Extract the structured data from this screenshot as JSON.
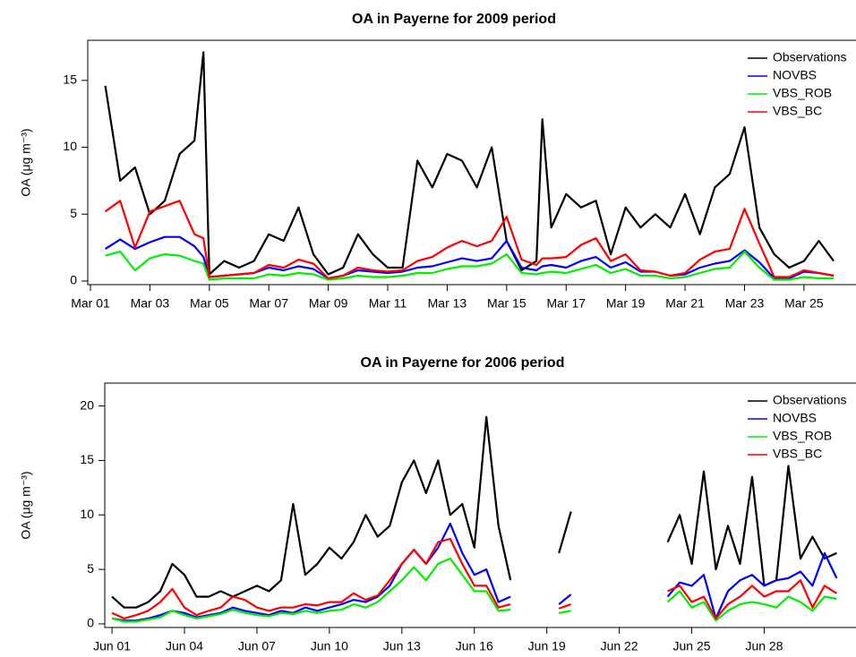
{
  "chart_data": [
    {
      "type": "line",
      "title": "OA in Payerne for 2009 period",
      "ylabel": "OA (μg m⁻³)",
      "xlim": [
        0.91,
        26.75
      ],
      "ylim": [
        -0.27,
        18.0
      ],
      "xticks": [
        {
          "value": 1,
          "label": "Mar 01"
        },
        {
          "value": 3,
          "label": "Mar 03"
        },
        {
          "value": 5,
          "label": "Mar 05"
        },
        {
          "value": 7,
          "label": "Mar 07"
        },
        {
          "value": 9,
          "label": "Mar 09"
        },
        {
          "value": 11,
          "label": "Mar 11"
        },
        {
          "value": 13,
          "label": "Mar 13"
        },
        {
          "value": 15,
          "label": "Mar 15"
        },
        {
          "value": 17,
          "label": "Mar 17"
        },
        {
          "value": 19,
          "label": "Mar 19"
        },
        {
          "value": 21,
          "label": "Mar 21"
        },
        {
          "value": 23,
          "label": "Mar 23"
        },
        {
          "value": 25,
          "label": "Mar 25"
        }
      ],
      "yticks": [
        0,
        5,
        10,
        15
      ],
      "legend": "top-right",
      "x": [
        1.5,
        2,
        2.5,
        3,
        3.5,
        4,
        4.5,
        4.8,
        5,
        5.5,
        6,
        6.5,
        7,
        7.5,
        8,
        8.5,
        9,
        9.5,
        10,
        10.5,
        11,
        11.5,
        12,
        12.5,
        13,
        13.5,
        14,
        14.5,
        15,
        15.5,
        16,
        16.2,
        16.5,
        17,
        17.5,
        18,
        18.5,
        19,
        19.5,
        20,
        20.5,
        21,
        21.5,
        22,
        22.5,
        23,
        23.5,
        24,
        24.5,
        25,
        25.5,
        26
      ],
      "series": [
        {
          "name": "Observations",
          "color": "#000000",
          "values": [
            14.6,
            7.5,
            8.5,
            5,
            6,
            9.5,
            10.5,
            17.1,
            0.5,
            1.5,
            1,
            1.5,
            3.5,
            3,
            5.5,
            2,
            0.5,
            1,
            3.5,
            2,
            1,
            1,
            9,
            7,
            9.5,
            9,
            7,
            10,
            3,
            0.8,
            1.5,
            12.1,
            4,
            6.5,
            5.5,
            6,
            2,
            5.5,
            4,
            5,
            4,
            6.5,
            3.5,
            7,
            8,
            11.5,
            4,
            2,
            1,
            1.5,
            3,
            1.5
          ]
        },
        {
          "name": "NOVBS",
          "color": "#0000ff",
          "values": [
            2.4,
            3.1,
            2.4,
            2.9,
            3.3,
            3.3,
            2.6,
            1.8,
            0.3,
            0.4,
            0.5,
            0.6,
            1.0,
            0.8,
            1.1,
            0.9,
            0.2,
            0.4,
            0.8,
            0.7,
            0.6,
            0.7,
            1.0,
            1.1,
            1.4,
            1.7,
            1.5,
            1.7,
            3.0,
            1.0,
            0.8,
            1.1,
            1.2,
            1.0,
            1.5,
            1.8,
            1.0,
            1.4,
            0.7,
            0.7,
            0.4,
            0.5,
            1.0,
            1.3,
            1.5,
            2.3,
            1.4,
            0.2,
            0.2,
            0.7,
            0.6,
            0.4
          ]
        },
        {
          "name": "VBS_ROB",
          "color": "#00ee00",
          "values": [
            1.9,
            2.2,
            0.8,
            1.7,
            2.0,
            1.9,
            1.5,
            1.3,
            0.1,
            0.2,
            0.2,
            0.2,
            0.5,
            0.4,
            0.6,
            0.5,
            0.1,
            0.2,
            0.4,
            0.3,
            0.3,
            0.4,
            0.6,
            0.6,
            0.9,
            1.1,
            1.1,
            1.3,
            2.0,
            0.6,
            0.5,
            0.6,
            0.7,
            0.6,
            0.9,
            1.2,
            0.6,
            0.9,
            0.4,
            0.4,
            0.2,
            0.3,
            0.6,
            0.9,
            1.0,
            2.2,
            1.0,
            0.1,
            0.1,
            0.3,
            0.2,
            0.2
          ]
        },
        {
          "name": "VBS_BC",
          "color": "#ff0000",
          "values": [
            5.2,
            6.0,
            2.5,
            5.2,
            5.6,
            6.0,
            3.5,
            3.2,
            0.3,
            0.4,
            0.5,
            0.6,
            1.2,
            1.0,
            1.6,
            1.3,
            0.2,
            0.4,
            1.0,
            0.8,
            0.7,
            0.8,
            1.5,
            1.8,
            2.5,
            3.0,
            2.6,
            3.0,
            4.8,
            1.6,
            1.2,
            1.7,
            1.7,
            1.8,
            2.7,
            3.2,
            1.5,
            2.0,
            0.8,
            0.7,
            0.4,
            0.6,
            1.6,
            2.2,
            2.4,
            5.4,
            2.8,
            0.3,
            0.3,
            0.8,
            0.6,
            0.4
          ]
        }
      ]
    },
    {
      "type": "line",
      "title": "OA in Payerne for 2006 period",
      "ylabel": "OA (μg m⁻³)",
      "xlim": [
        0.7,
        31.8
      ],
      "ylim": [
        -0.33,
        22.1
      ],
      "xticks": [
        {
          "value": 1,
          "label": "Jun 01"
        },
        {
          "value": 4,
          "label": "Jun 04"
        },
        {
          "value": 7,
          "label": "Jun 07"
        },
        {
          "value": 10,
          "label": "Jun 10"
        },
        {
          "value": 13,
          "label": "Jun 13"
        },
        {
          "value": 16,
          "label": "Jun 16"
        },
        {
          "value": 19,
          "label": "Jun 19"
        },
        {
          "value": 22,
          "label": "Jun 22"
        },
        {
          "value": 25,
          "label": "Jun 25"
        },
        {
          "value": 28,
          "label": "Jun 28"
        }
      ],
      "yticks": [
        0,
        5,
        10,
        15,
        20
      ],
      "legend": "top-right",
      "x": [
        1,
        1.5,
        2,
        2.5,
        3,
        3.5,
        4,
        4.5,
        5,
        5.5,
        6,
        6.5,
        7,
        7.5,
        8,
        8.5,
        9,
        9.5,
        10,
        10.5,
        11,
        11.5,
        12,
        12.5,
        13,
        13.5,
        14,
        14.5,
        15,
        15.5,
        16,
        16.5,
        17,
        17.5,
        18,
        18.5,
        19,
        19.5,
        20,
        20.5,
        21,
        21.5,
        22,
        22.5,
        23,
        23.5,
        24,
        24.5,
        25,
        25.5,
        26,
        26.5,
        27,
        27.5,
        28,
        28.5,
        29,
        29.5,
        30,
        30.5,
        31
      ],
      "series": [
        {
          "name": "Observations",
          "color": "#000000",
          "values": [
            2.5,
            1.5,
            1.5,
            2,
            3,
            5.5,
            4.5,
            2.5,
            2.5,
            3,
            2.5,
            3,
            3.5,
            3,
            4,
            11,
            4.5,
            5.5,
            7,
            6,
            7.5,
            10,
            8,
            9,
            13,
            15,
            12,
            15,
            10,
            11,
            7,
            19,
            9,
            4,
            null,
            null,
            null,
            6.5,
            10.3,
            null,
            null,
            null,
            null,
            null,
            null,
            null,
            7.5,
            10,
            5.5,
            14,
            5,
            9,
            5.5,
            13.5,
            3.5,
            4,
            14.5,
            6,
            8,
            6,
            6.5
          ]
        },
        {
          "name": "NOVBS",
          "color": "#0000ff",
          "values": [
            0.5,
            0.3,
            0.3,
            0.5,
            0.8,
            1.2,
            1.0,
            0.6,
            0.8,
            1.0,
            1.5,
            1.2,
            1.0,
            0.8,
            1.2,
            1.0,
            1.5,
            1.2,
            1.5,
            1.8,
            2.2,
            2.0,
            2.5,
            3.5,
            5.5,
            6.8,
            5.5,
            7.0,
            9.2,
            6.5,
            4.5,
            5.0,
            2.0,
            2.5,
            null,
            null,
            null,
            1.8,
            2.7,
            null,
            null,
            null,
            null,
            null,
            null,
            null,
            2.5,
            3.8,
            3.5,
            4.5,
            0.5,
            3.0,
            4.0,
            4.5,
            3.5,
            4.0,
            4.2,
            4.8,
            3.5,
            6.5,
            4.2
          ]
        },
        {
          "name": "VBS_ROB",
          "color": "#00ee00",
          "values": [
            0.5,
            0.2,
            0.2,
            0.4,
            0.6,
            1.2,
            0.8,
            0.5,
            0.7,
            0.9,
            1.3,
            1.0,
            0.8,
            0.7,
            1.0,
            0.9,
            1.2,
            1.0,
            1.2,
            1.3,
            1.8,
            1.5,
            2.0,
            3.0,
            4.0,
            5.2,
            4.0,
            5.5,
            6.0,
            4.5,
            3.0,
            3.0,
            1.2,
            1.3,
            null,
            null,
            null,
            1.0,
            1.2,
            null,
            null,
            null,
            null,
            null,
            null,
            null,
            2.0,
            3.0,
            1.5,
            2.0,
            0.3,
            1.2,
            1.8,
            2.0,
            1.8,
            1.5,
            2.5,
            2.0,
            1.2,
            2.5,
            2.3
          ]
        },
        {
          "name": "VBS_BC",
          "color": "#ff0000",
          "values": [
            1.0,
            0.5,
            0.8,
            1.2,
            2.0,
            3.2,
            1.5,
            0.8,
            1.2,
            1.5,
            2.5,
            2.2,
            1.5,
            1.2,
            1.5,
            1.5,
            1.8,
            1.7,
            2.0,
            2.0,
            2.8,
            2.2,
            2.6,
            4.0,
            5.5,
            6.8,
            5.5,
            7.5,
            7.8,
            5.5,
            3.5,
            3.5,
            1.5,
            1.8,
            null,
            null,
            null,
            1.4,
            1.8,
            null,
            null,
            null,
            null,
            null,
            null,
            null,
            3.0,
            3.5,
            2.0,
            2.5,
            0.5,
            1.8,
            2.5,
            3.5,
            2.5,
            3.0,
            3.0,
            4.0,
            1.5,
            3.5,
            2.8
          ]
        }
      ]
    }
  ]
}
